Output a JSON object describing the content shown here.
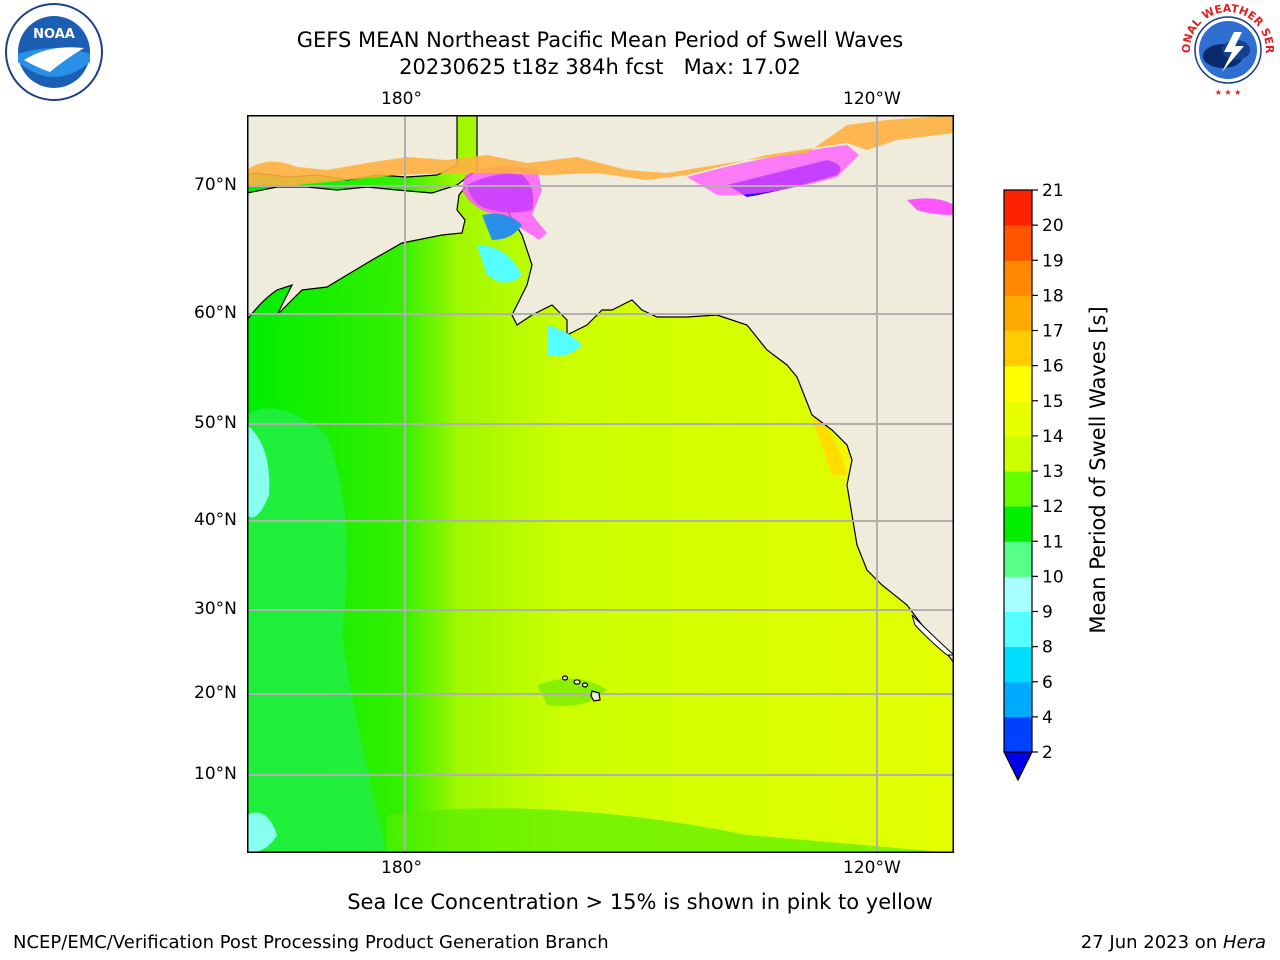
{
  "title": {
    "line1": "GEFS MEAN Northeast Pacific Mean Period of Swell Waves",
    "line2": "20230625 t18z 384h fcst   Max: 17.02"
  },
  "axes": {
    "top_ticks": [
      "180°",
      "120°W"
    ],
    "bottom_ticks": [
      "180°",
      "120°W"
    ],
    "lat_ticks": [
      "70°N",
      "60°N",
      "50°N",
      "40°N",
      "30°N",
      "20°N",
      "10°N"
    ]
  },
  "colorbar": {
    "label": "Mean Period of Swell Waves [s]",
    "ticks": [
      "2",
      "4",
      "6",
      "8",
      "9",
      "10",
      "11",
      "12",
      "13",
      "14",
      "15",
      "16",
      "17",
      "18",
      "19",
      "20",
      "21"
    ],
    "colors": [
      "#0040ff",
      "#00aaff",
      "#00ddff",
      "#55ffff",
      "#a8ffff",
      "#55ff88",
      "#00ee00",
      "#66ff00",
      "#ccff00",
      "#e8ff00",
      "#ffff00",
      "#ffcc00",
      "#ffaa00",
      "#ff8800",
      "#ff5500",
      "#ff2200"
    ],
    "extend_color": "#0000ee"
  },
  "colors": {
    "land": "#efecdc",
    "grid": "#b0b0b0",
    "sea_ice_dark": "#1a00ff",
    "sea_ice_pink": "#ff55ff",
    "sea_ice_orange": "#ffb040"
  },
  "footer": {
    "note": "Sea Ice Concentration > 15% is shown in pink to yellow",
    "credit_left": "NCEP/EMC/Verification Post Processing Product Generation Branch",
    "credit_date": "27 Jun 2023 on ",
    "credit_host": "Hera"
  },
  "logos": {
    "noaa_text": "NOAA",
    "nws_text": "NATIONAL WEATHER SERVICE"
  }
}
